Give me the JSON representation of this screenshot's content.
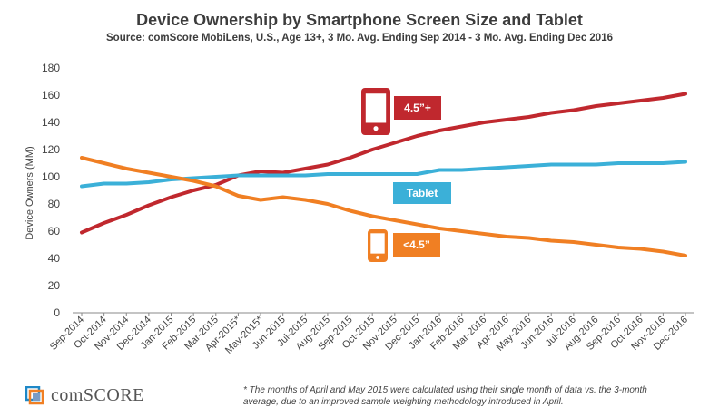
{
  "chart_data": {
    "type": "line",
    "title": "Device Ownership by Smartphone Screen Size and Tablet",
    "subtitle": "Source: comScore MobiLens, U.S., Age 13+, 3 Mo. Avg. Ending Sep 2014 - 3 Mo. Avg. Ending Dec 2016",
    "xlabel": "",
    "ylabel": "Device Owners (MM)",
    "ylim": [
      0,
      180
    ],
    "yticks": [
      "0",
      "20",
      "40",
      "60",
      "80",
      "100",
      "120",
      "140",
      "160",
      "180"
    ],
    "grid": false,
    "categories": [
      "Sep-2014",
      "Oct-2014",
      "Nov-2014",
      "Dec-2014",
      "Jan-2015",
      "Feb-2015",
      "Mar-2015",
      "Apr-2015*",
      "May-2015*",
      "Jun-2015",
      "Jul-2015",
      "Aug-2015",
      "Sep-2015",
      "Oct-2015",
      "Nov-2015",
      "Dec-2015",
      "Jan-2016",
      "Feb-2016",
      "Mar-2016",
      "Apr-2016",
      "May-2016",
      "Jun-2016",
      "Jul-2016",
      "Aug-2016",
      "Sep-2016",
      "Oct-2016",
      "Nov-2016",
      "Dec-2016"
    ],
    "series": [
      {
        "name": "4.5”+",
        "color": "#c0282e",
        "icon": "smartphone-icon",
        "values": [
          59,
          66,
          72,
          79,
          85,
          90,
          94,
          101,
          104,
          103,
          106,
          109,
          114,
          120,
          125,
          130,
          134,
          137,
          140,
          142,
          144,
          147,
          149,
          152,
          154,
          156,
          158,
          161
        ]
      },
      {
        "name": "Tablet",
        "color": "#3bb0d8",
        "values": [
          93,
          95,
          95,
          96,
          98,
          99,
          100,
          101,
          101,
          101,
          101,
          102,
          102,
          102,
          102,
          102,
          105,
          105,
          106,
          107,
          108,
          109,
          109,
          109,
          110,
          110,
          110,
          111
        ]
      },
      {
        "name": "<4.5”",
        "color": "#f07f23",
        "icon": "smartphone-icon",
        "values": [
          114,
          110,
          106,
          103,
          100,
          97,
          93,
          86,
          83,
          85,
          83,
          80,
          75,
          71,
          68,
          65,
          62,
          60,
          58,
          56,
          55,
          53,
          52,
          50,
          48,
          47,
          45,
          42
        ]
      }
    ]
  },
  "footnote": "* The months of April and May 2015 were calculated using their single month of data vs. the 3-month average, due to an improved sample weighting methodology introduced in April.",
  "logo": {
    "text": "comSCORE",
    "icon": "comscore-logo-icon"
  }
}
